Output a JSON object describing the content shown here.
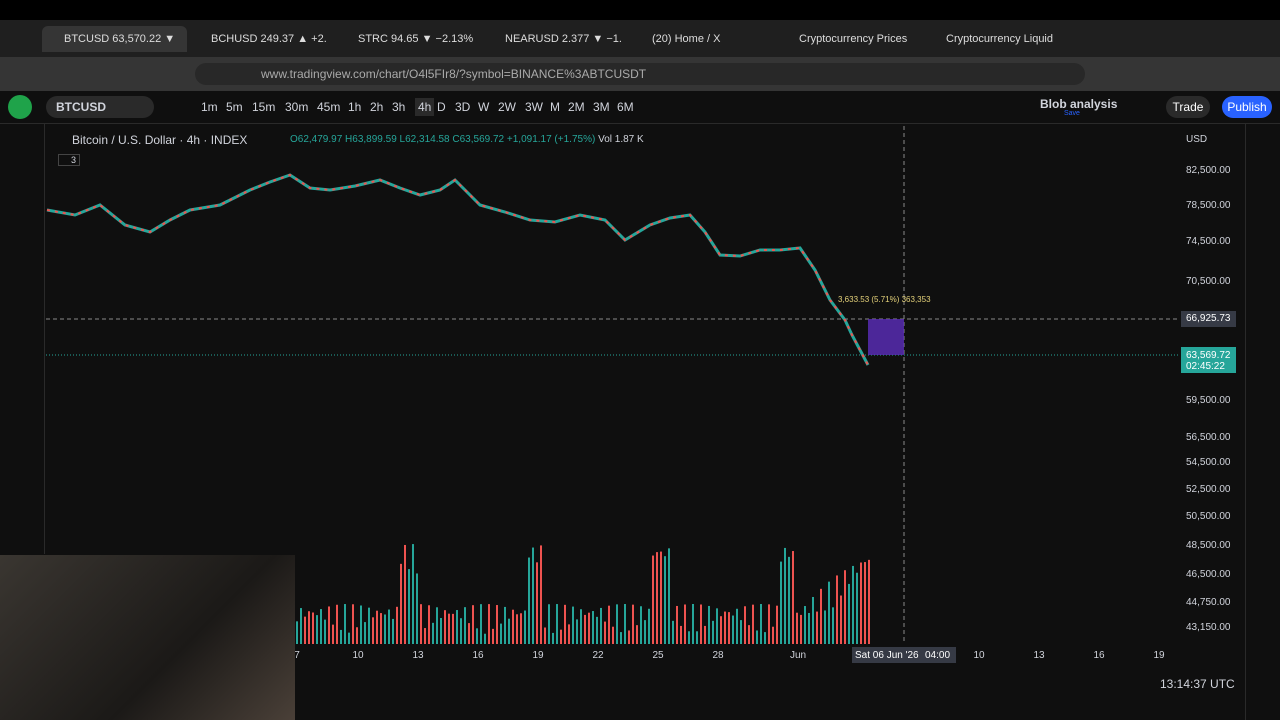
{
  "tabs": [
    "BTCUSD 63,570.22 ▼ ...",
    "BCHUSD 249.37 ▲ +2.",
    "STRC 94.65 ▼ −2.13%",
    "NEARUSD 2.377 ▼ −1.",
    "(20) Home / X",
    "Cryptocurrency Prices",
    "Cryptocurrency Liquid"
  ],
  "url": "www.tradingview.com/chart/O4l5FIr8/?symbol=BINANCE%3ABTCUSDT",
  "symbol": "BTCUSD",
  "intervals": [
    "1m",
    "5m",
    "15m",
    "30m",
    "45m",
    "1h",
    "2h",
    "3h",
    "4h",
    "D",
    "3D",
    "W",
    "2W",
    "3W",
    "M",
    "2M",
    "3M",
    "6M"
  ],
  "layout_name": "Blob analysis",
  "layout_status": "Save",
  "trade_button": "Trade",
  "publish_button": "Publish",
  "legend": {
    "title": "Bitcoin / U.S. Dollar · 4h · INDEX",
    "open": "O62,479.97",
    "high": "H63,899.59",
    "low": "L62,314.58",
    "close": "C63,569.72",
    "change": "+1,091.17 (+1.75%)",
    "volume": "Vol 1.87 K",
    "indicators": "3"
  },
  "currency": "USD",
  "price_axis": [
    "82,500.00",
    "78,500.00",
    "74,500.00",
    "70,500.00",
    "59,500.00",
    "56,500.00",
    "54,500.00",
    "52,500.00",
    "50,500.00",
    "48,500.00",
    "46,500.00",
    "44,750.00",
    "43,150.00"
  ],
  "crosshair_price": "66,925.73",
  "last_price": "63,569.72",
  "countdown": "02:45:22",
  "measure": "3,633.53 (5.71%) 363,353",
  "time_axis": [
    "7",
    "10",
    "13",
    "16",
    "19",
    "22",
    "25",
    "28",
    "Jun",
    "10",
    "13",
    "16",
    "19"
  ],
  "crosshair_time": "Sat 06 Jun '26",
  "crosshair_hour": "04:00",
  "clock": "13:14:37 UTC"
}
